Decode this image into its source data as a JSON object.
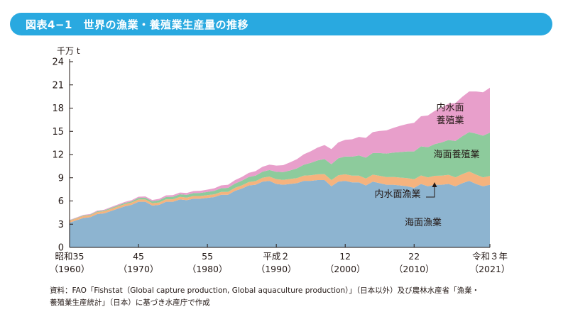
{
  "title": "図表4−1　世界の漁業・養殖業生産量の推移",
  "source": {
    "line1": "資料：FAO「Fishstat（Global capture production, Global aquaculture production）」（日本以外）及び農林水産省「漁業・",
    "line2": "養殖業生産統計」（日本）に基づき水産庁で作成"
  },
  "colors": {
    "marine_capture": "#8db4d0",
    "inland_capture": "#f5b37e",
    "marine_aquaculture": "#8dcb9c",
    "inland_aquaculture": "#e89fcb",
    "title_bar": "#29a9e0"
  },
  "chart_data": {
    "type": "area",
    "stacked": true,
    "title": "世界の漁業・養殖業生産量の推移",
    "ylabel": "千万 t",
    "ylim": [
      0,
      24
    ],
    "yticks": [
      0,
      3,
      6,
      9,
      12,
      15,
      18,
      21,
      24
    ],
    "xlim": [
      1960,
      2021
    ],
    "xticks": [
      {
        "year": 1960,
        "line1": "昭和35",
        "line2": "（1960）"
      },
      {
        "year": 1970,
        "line1": "45",
        "line2": "（1970）"
      },
      {
        "year": 1980,
        "line1": "55",
        "line2": "（1980）"
      },
      {
        "year": 1990,
        "line1": "平成２",
        "line2": "（1990）"
      },
      {
        "year": 2000,
        "line1": "12",
        "line2": "（2000）"
      },
      {
        "year": 2010,
        "line1": "22",
        "line2": "（2010）"
      },
      {
        "year": 2021,
        "line1": "令和３年",
        "line2": "（2021）"
      }
    ],
    "x": [
      1960,
      1961,
      1962,
      1963,
      1964,
      1965,
      1966,
      1967,
      1968,
      1969,
      1970,
      1971,
      1972,
      1973,
      1974,
      1975,
      1976,
      1977,
      1978,
      1979,
      1980,
      1981,
      1982,
      1983,
      1984,
      1985,
      1986,
      1987,
      1988,
      1989,
      1990,
      1991,
      1992,
      1993,
      1994,
      1995,
      1996,
      1997,
      1998,
      1999,
      2000,
      2001,
      2002,
      2003,
      2004,
      2005,
      2006,
      2007,
      2008,
      2009,
      2010,
      2011,
      2012,
      2013,
      2014,
      2015,
      2016,
      2017,
      2018,
      2019,
      2020,
      2021
    ],
    "series": [
      {
        "name": "海面漁業",
        "label": "海面漁業",
        "values": [
          3.2,
          3.5,
          3.8,
          3.9,
          4.3,
          4.4,
          4.7,
          5.0,
          5.3,
          5.5,
          5.9,
          5.9,
          5.4,
          5.5,
          5.9,
          5.9,
          6.2,
          6.1,
          6.3,
          6.3,
          6.4,
          6.5,
          6.8,
          6.8,
          7.3,
          7.6,
          8.0,
          8.1,
          8.5,
          8.6,
          8.2,
          8.1,
          8.2,
          8.3,
          8.6,
          8.6,
          8.7,
          8.7,
          7.9,
          8.5,
          8.6,
          8.4,
          8.4,
          8.0,
          8.5,
          8.3,
          8.1,
          8.1,
          8.0,
          7.9,
          7.7,
          8.2,
          7.9,
          8.1,
          8.1,
          8.2,
          7.9,
          8.3,
          8.6,
          8.2,
          7.9,
          8.1
        ]
      },
      {
        "name": "内水面漁業",
        "label": "内水面漁業",
        "values": [
          0.25,
          0.25,
          0.26,
          0.26,
          0.27,
          0.27,
          0.28,
          0.28,
          0.29,
          0.29,
          0.3,
          0.3,
          0.31,
          0.31,
          0.32,
          0.32,
          0.33,
          0.33,
          0.34,
          0.34,
          0.35,
          0.36,
          0.37,
          0.38,
          0.4,
          0.42,
          0.44,
          0.46,
          0.5,
          0.55,
          0.62,
          0.63,
          0.64,
          0.66,
          0.68,
          0.72,
          0.75,
          0.77,
          0.8,
          0.82,
          0.85,
          0.87,
          0.88,
          0.9,
          0.9,
          0.95,
          0.98,
          1.0,
          1.02,
          1.05,
          1.1,
          1.1,
          1.15,
          1.15,
          1.17,
          1.18,
          1.15,
          1.17,
          1.2,
          1.2,
          1.14,
          1.13
        ]
      },
      {
        "name": "海面養殖業",
        "label": "海面養殖業",
        "values": [
          0.05,
          0.06,
          0.07,
          0.08,
          0.09,
          0.1,
          0.12,
          0.14,
          0.15,
          0.17,
          0.2,
          0.22,
          0.25,
          0.28,
          0.3,
          0.32,
          0.34,
          0.36,
          0.38,
          0.4,
          0.42,
          0.45,
          0.48,
          0.52,
          0.55,
          0.6,
          0.66,
          0.72,
          0.78,
          0.85,
          0.95,
          1.0,
          1.1,
          1.25,
          1.4,
          1.6,
          1.8,
          1.95,
          2.05,
          2.2,
          2.3,
          2.45,
          2.6,
          2.7,
          2.8,
          2.95,
          3.05,
          3.15,
          3.3,
          3.45,
          3.6,
          3.75,
          3.9,
          4.1,
          4.3,
          4.5,
          4.7,
          4.9,
          5.1,
          5.3,
          5.4,
          5.6
        ]
      },
      {
        "name": "内水面養殖業",
        "label": "内水面\n養殖業",
        "values": [
          0.05,
          0.06,
          0.07,
          0.08,
          0.09,
          0.1,
          0.11,
          0.12,
          0.13,
          0.14,
          0.15,
          0.16,
          0.17,
          0.18,
          0.2,
          0.21,
          0.22,
          0.24,
          0.26,
          0.28,
          0.3,
          0.33,
          0.36,
          0.4,
          0.44,
          0.48,
          0.53,
          0.58,
          0.64,
          0.7,
          0.8,
          0.9,
          1.05,
          1.2,
          1.35,
          1.5,
          1.65,
          1.8,
          1.95,
          2.05,
          2.15,
          2.25,
          2.4,
          2.55,
          2.7,
          2.85,
          3.0,
          3.2,
          3.4,
          3.55,
          3.7,
          3.9,
          4.1,
          4.3,
          4.5,
          4.7,
          4.9,
          5.1,
          5.25,
          5.45,
          5.6,
          5.8
        ]
      }
    ]
  }
}
